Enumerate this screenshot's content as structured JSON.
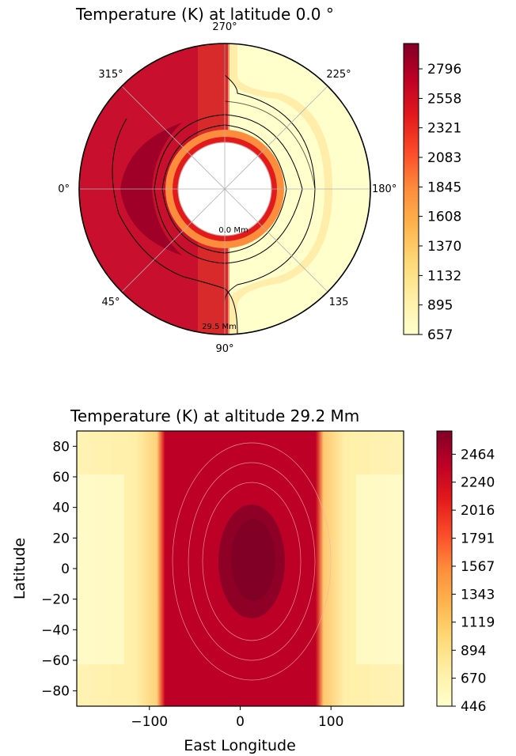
{
  "chart_data": [
    {
      "type": "polar contour",
      "title": "Temperature (K) at latitude 0.0 °",
      "angle_labels": [
        "270°",
        "225°",
        "180°",
        "135",
        "90°",
        "45°",
        "0°",
        "315°"
      ],
      "angle_values_deg": [
        270,
        225,
        180,
        135,
        90,
        45,
        0,
        315
      ],
      "radius_labels": [
        "0.0 Mm",
        "29.5 Mm"
      ],
      "radius_range_Mm": [
        0.0,
        29.5
      ],
      "colorbar": {
        "ticks": [
          2796,
          2558,
          2321,
          2083,
          1845,
          1608,
          1370,
          1132,
          895,
          657
        ],
        "vmin": 657,
        "vmax": 3000
      },
      "grid": true
    },
    {
      "type": "heatmap",
      "title": "Temperature (K) at altitude 29.2 Mm",
      "xlabel": "East Longitude",
      "ylabel": "Latitude",
      "xlim": [
        -180,
        180
      ],
      "ylim": [
        -90,
        90
      ],
      "xticks": [
        -100,
        0,
        100
      ],
      "xtick_labels": [
        "−100",
        "0",
        "100"
      ],
      "yticks": [
        80,
        60,
        40,
        20,
        0,
        -20,
        -40,
        -60,
        -80
      ],
      "ytick_labels": [
        "80",
        "60",
        "40",
        "20",
        "0",
        "−20",
        "−40",
        "−60",
        "−80"
      ],
      "day_side_longitude_range": [
        -85,
        85
      ],
      "hotspot_center": {
        "lon": 15,
        "lat": 5
      },
      "colorbar": {
        "ticks": [
          2464,
          2240,
          2016,
          1791,
          1567,
          1343,
          1119,
          894,
          670,
          446
        ],
        "vmin": 446,
        "vmax": 2650
      }
    }
  ]
}
